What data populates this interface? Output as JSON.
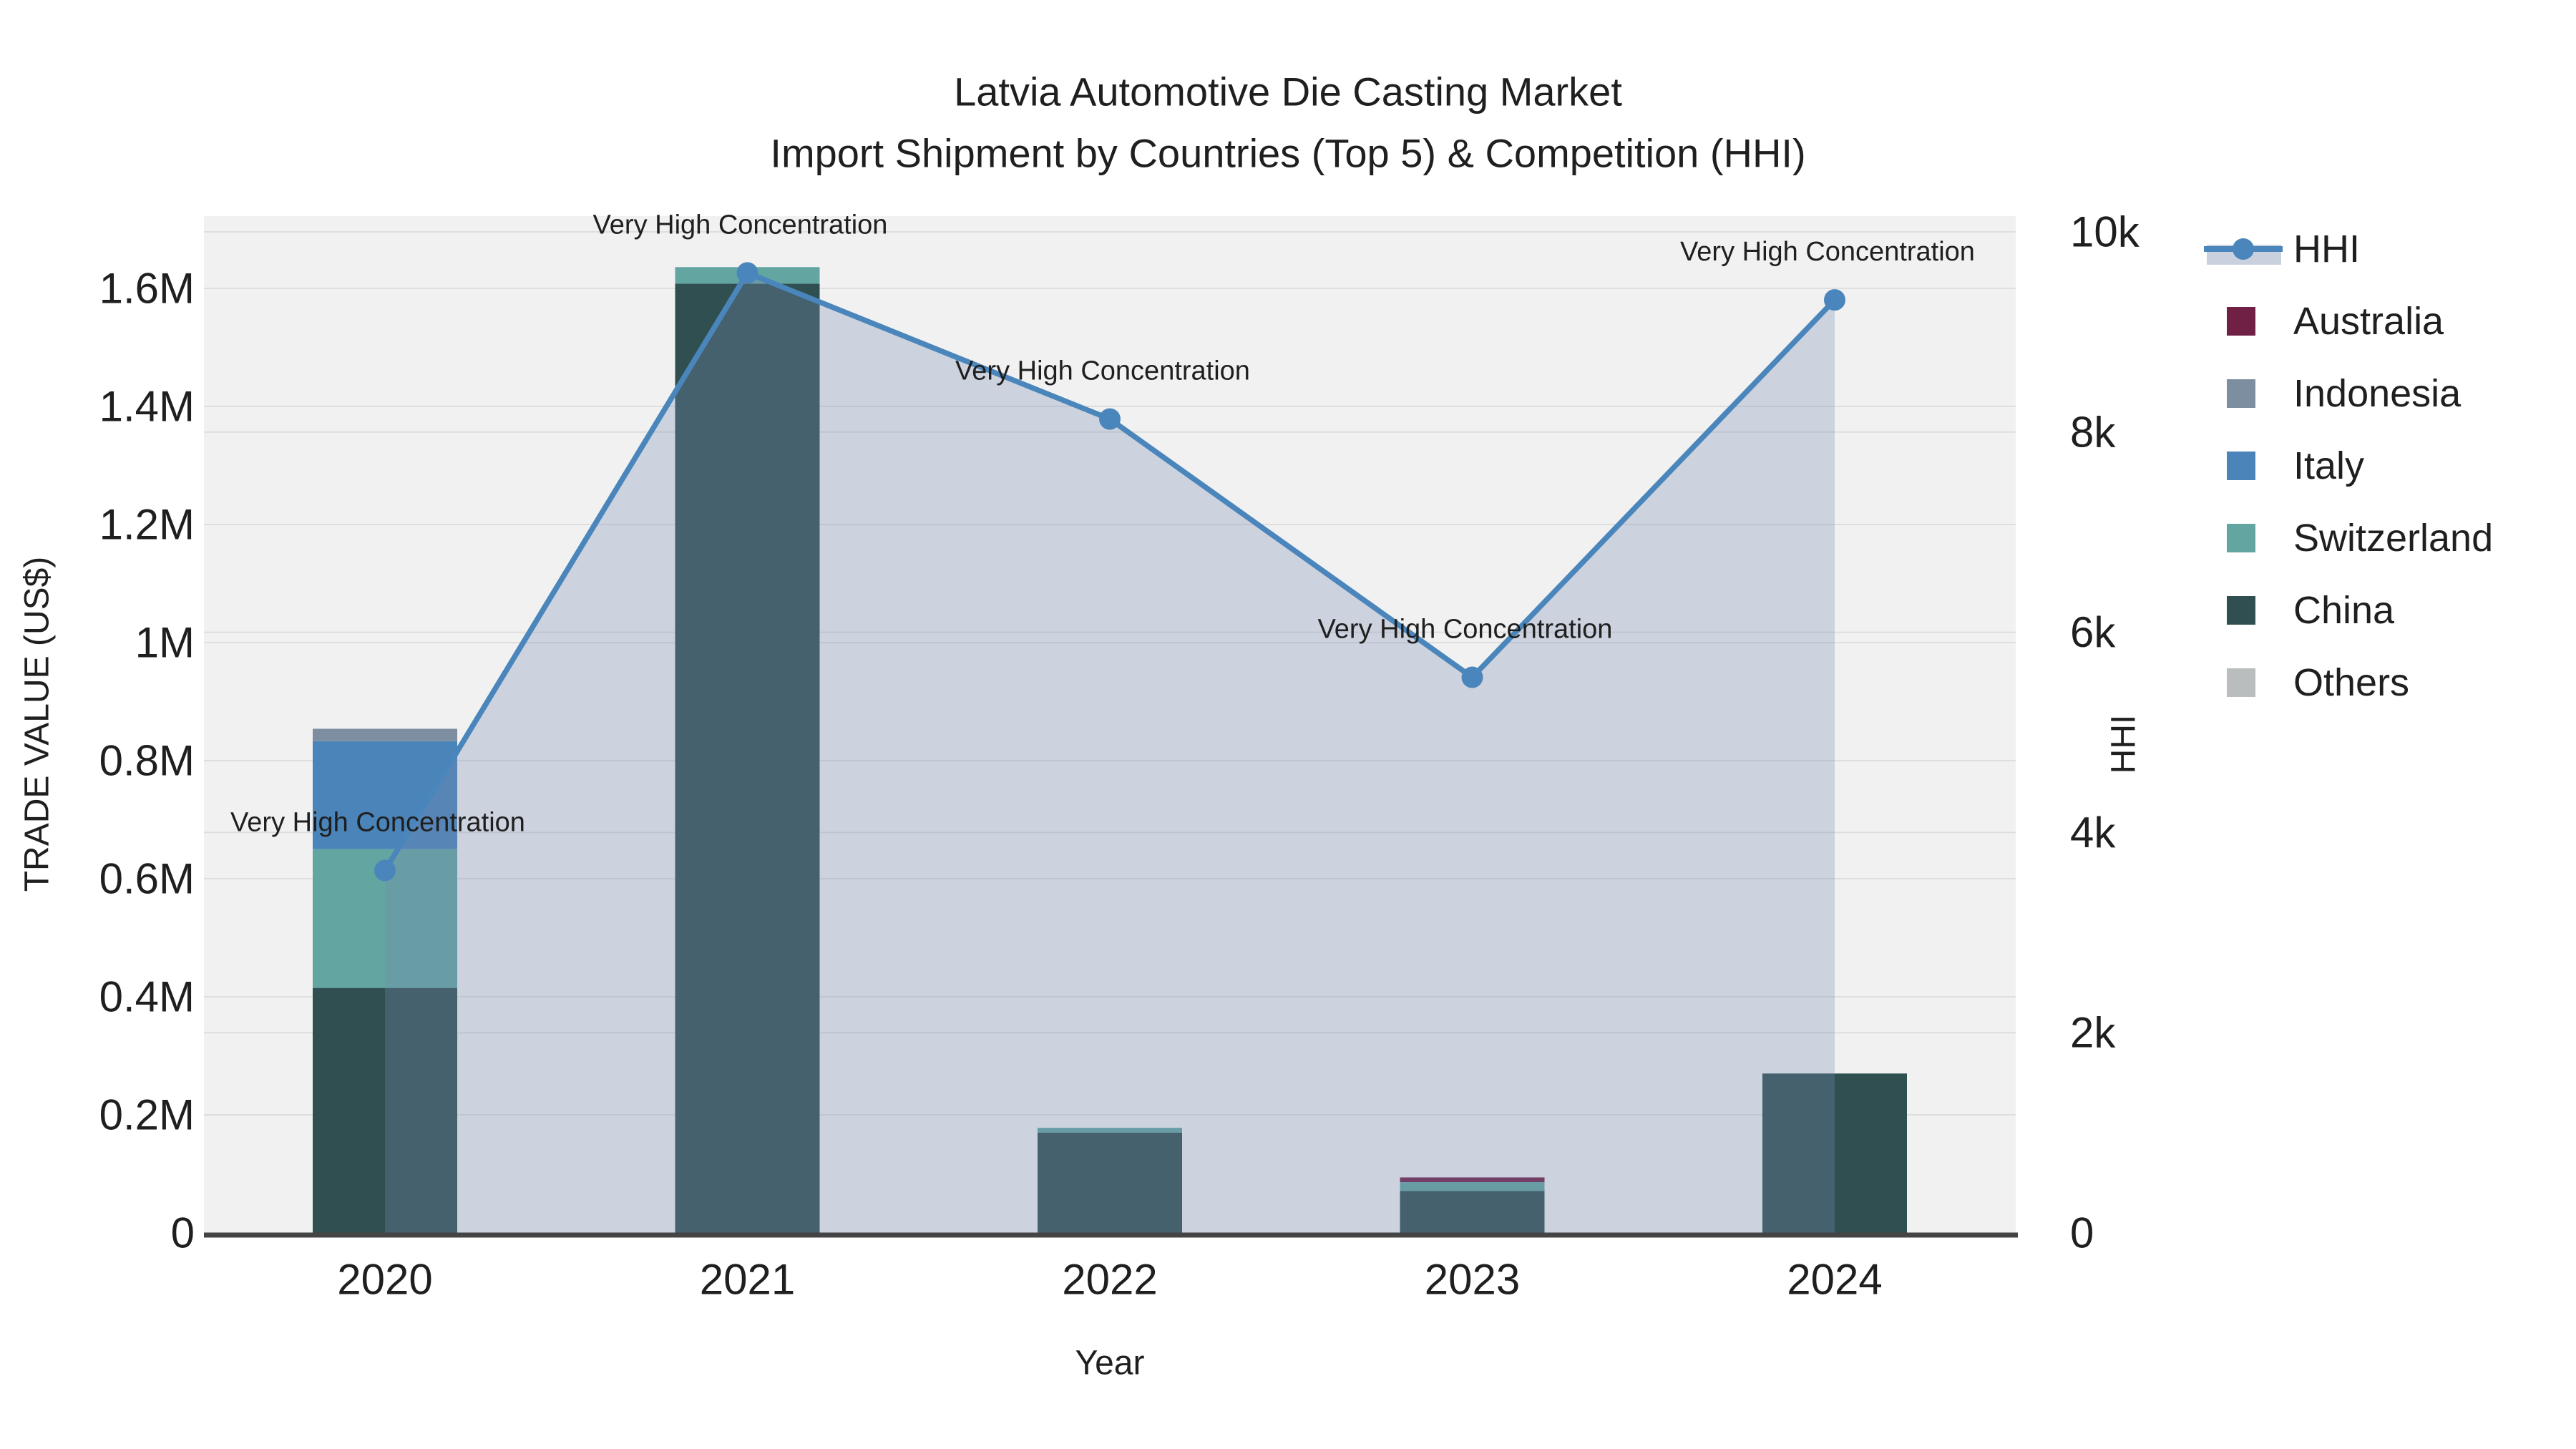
{
  "title": {
    "line1": "Latvia Automotive Die Casting Market",
    "line2": "Import Shipment by Countries (Top 5) & Competition (HHI)"
  },
  "axes": {
    "x": {
      "title": "Year",
      "tick_labels": [
        "2020",
        "2021",
        "2022",
        "2023",
        "2024"
      ]
    },
    "y_left": {
      "title": "TRADE VALUE (US$)",
      "tick_labels": [
        "0",
        "0.2M",
        "0.4M",
        "0.6M",
        "0.8M",
        "1M",
        "1.2M",
        "1.4M",
        "1.6M"
      ],
      "tick_values": [
        0,
        200000,
        400000,
        600000,
        800000,
        1000000,
        1200000,
        1400000,
        1600000
      ]
    },
    "y_right": {
      "title": "HHI",
      "tick_labels": [
        "0",
        "2k",
        "4k",
        "6k",
        "8k",
        "10k"
      ],
      "tick_values": [
        0,
        2000,
        4000,
        6000,
        8000,
        10000
      ]
    }
  },
  "legend": {
    "items": [
      {
        "label": "HHI",
        "type": "line",
        "color": "#4a86bb"
      },
      {
        "label": "Australia",
        "type": "swatch",
        "color": "#701f45"
      },
      {
        "label": "Indonesia",
        "type": "swatch",
        "color": "#7d8ea1"
      },
      {
        "label": "Italy",
        "type": "swatch",
        "color": "#4a84b8"
      },
      {
        "label": "Switzerland",
        "type": "swatch",
        "color": "#62a5a1"
      },
      {
        "label": "China",
        "type": "swatch",
        "color": "#2f4f50"
      },
      {
        "label": "Others",
        "type": "swatch",
        "color": "#b9bdbd"
      }
    ]
  },
  "annotations": [
    "Very High Concentration",
    "Very High Concentration",
    "Very High Concentration",
    "Very High Concentration",
    "Very High Concentration"
  ],
  "colors": {
    "plot_background": "#f1f1f1",
    "grid": "#dedede",
    "axis_line": "#444444",
    "hhi_line": "#4a86bb",
    "hhi_fill": "rgba(120,140,180,0.30)",
    "text": "#1f1f1f"
  },
  "chart_data": {
    "type": [
      "bar",
      "line"
    ],
    "categories": [
      "2020",
      "2021",
      "2022",
      "2023",
      "2024"
    ],
    "bar_series": [
      {
        "name": "Australia",
        "color": "#701f45",
        "values": [
          0,
          0,
          0,
          8000,
          0
        ]
      },
      {
        "name": "Indonesia",
        "color": "#7d8ea1",
        "values": [
          21000,
          0,
          0,
          0,
          0
        ]
      },
      {
        "name": "Italy",
        "color": "#4a84b8",
        "values": [
          183000,
          0,
          0,
          0,
          0
        ]
      },
      {
        "name": "Switzerland",
        "color": "#62a5a1",
        "values": [
          235000,
          28000,
          8000,
          15000,
          0
        ]
      },
      {
        "name": "China",
        "color": "#2f4f50",
        "values": [
          415000,
          1608000,
          170000,
          71000,
          270000
        ]
      },
      {
        "name": "Others",
        "color": "#b9bdbd",
        "values": [
          0,
          0,
          0,
          0,
          0
        ]
      }
    ],
    "line_series": {
      "name": "HHI",
      "axis": "right",
      "color": "#4a86bb",
      "values": [
        3620,
        9590,
        8130,
        5550,
        9320
      ]
    },
    "title": "Latvia Automotive Die Casting Market — Import Shipment by Countries (Top 5) & Competition (HHI)",
    "xlabel": "Year",
    "ylabel_left": "TRADE VALUE (US$)",
    "ylabel_right": "HHI",
    "ylim_left": [
      0,
      1722000
    ],
    "ylim_right": [
      0,
      10160
    ],
    "grid": true,
    "legend_position": "right",
    "stack_order_bottom_to_top": [
      "China",
      "Switzerland",
      "Italy",
      "Indonesia",
      "Australia",
      "Others"
    ]
  }
}
